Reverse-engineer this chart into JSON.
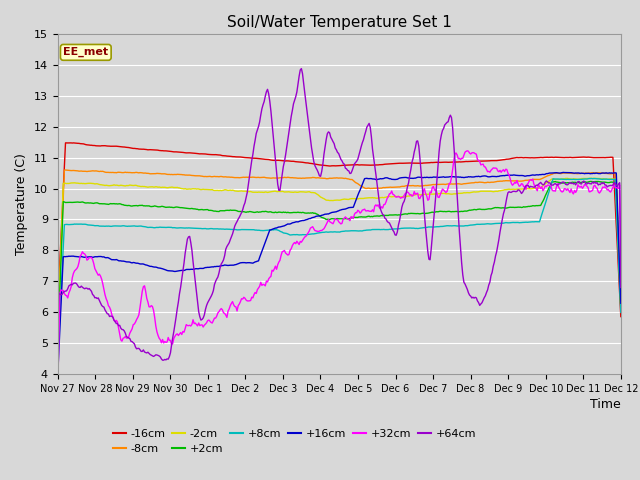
{
  "title": "Soil/Water Temperature Set 1",
  "xlabel": "Time",
  "ylabel": "Temperature (C)",
  "ylim": [
    4.0,
    15.0
  ],
  "yticks": [
    4.0,
    5.0,
    6.0,
    7.0,
    8.0,
    9.0,
    10.0,
    11.0,
    12.0,
    13.0,
    14.0,
    15.0
  ],
  "bg_color": "#d8d8d8",
  "watermark": "EE_met",
  "series": [
    {
      "label": "-16cm",
      "color": "#dd0000"
    },
    {
      "label": "-8cm",
      "color": "#ff8800"
    },
    {
      "label": "-2cm",
      "color": "#dddd00"
    },
    {
      "label": "+2cm",
      "color": "#00bb00"
    },
    {
      "label": "+8cm",
      "color": "#00bbbb"
    },
    {
      "label": "+16cm",
      "color": "#0000cc"
    },
    {
      "label": "+32cm",
      "color": "#ff00ff"
    },
    {
      "label": "+64cm",
      "color": "#9900cc"
    }
  ],
  "x_tick_labels": [
    "Nov 27",
    "Nov 28",
    "Nov 29",
    "Nov 30",
    "Dec 1",
    "Dec 2",
    "Dec 3",
    "Dec 4",
    "Dec 5",
    "Dec 6",
    "Dec 7",
    "Dec 8",
    "Dec 9",
    "Dec 10",
    "Dec 11",
    "Dec 12"
  ]
}
